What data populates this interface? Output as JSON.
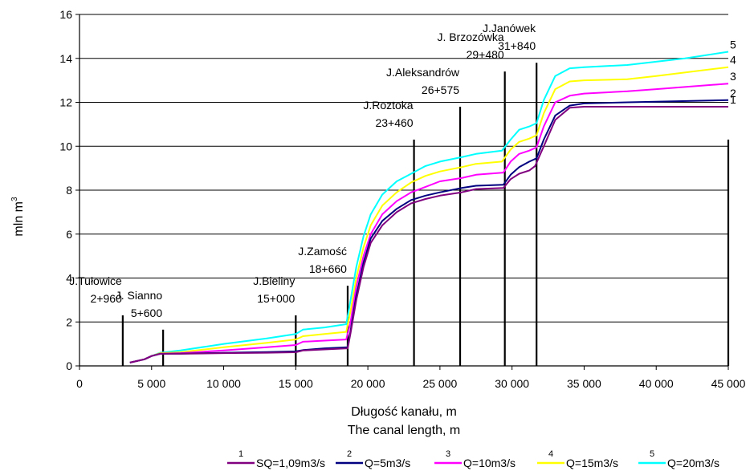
{
  "chart_data": {
    "type": "line",
    "title": "",
    "xlabel": "Długość kanału, m",
    "xlabel2": "The canal length, m",
    "ylabel": "mln m",
    "ylabel_sup": "3",
    "xlim": [
      0,
      45000
    ],
    "ylim": [
      0,
      16
    ],
    "xticks": [
      0,
      5000,
      10000,
      15000,
      20000,
      25000,
      30000,
      35000,
      40000,
      45000
    ],
    "xtick_labels": [
      "0",
      "5 000",
      "10 000",
      "15 000",
      "20 000",
      "25 000",
      "30 000",
      "35 000",
      "40 000",
      "45 000"
    ],
    "yticks": [
      0,
      2,
      4,
      6,
      8,
      10,
      12,
      14,
      16
    ],
    "ytick_labels": [
      "0",
      "2",
      "4",
      "6",
      "8",
      "10",
      "12",
      "14",
      "16"
    ],
    "grid": "horizontal",
    "legend_position": "bottom",
    "series": [
      {
        "num": "1",
        "name": "SQ=1,09m3/s",
        "color": "#800080",
        "points": [
          [
            3500,
            0.15
          ],
          [
            4500,
            0.3
          ],
          [
            5000,
            0.45
          ],
          [
            5600,
            0.55
          ],
          [
            7000,
            0.55
          ],
          [
            10000,
            0.58
          ],
          [
            13000,
            0.6
          ],
          [
            15000,
            0.62
          ],
          [
            15500,
            0.7
          ],
          [
            17000,
            0.75
          ],
          [
            18600,
            0.8
          ],
          [
            18800,
            1.5
          ],
          [
            19200,
            3.0
          ],
          [
            19700,
            4.5
          ],
          [
            20200,
            5.6
          ],
          [
            21000,
            6.4
          ],
          [
            22000,
            7.0
          ],
          [
            23000,
            7.4
          ],
          [
            24000,
            7.6
          ],
          [
            25000,
            7.75
          ],
          [
            26500,
            7.9
          ],
          [
            27500,
            8.05
          ],
          [
            29400,
            8.1
          ],
          [
            29900,
            8.5
          ],
          [
            30500,
            8.75
          ],
          [
            31200,
            8.9
          ],
          [
            31600,
            9.1
          ],
          [
            32200,
            10.0
          ],
          [
            33000,
            11.2
          ],
          [
            34000,
            11.75
          ],
          [
            35000,
            11.8
          ],
          [
            45000,
            11.8
          ]
        ]
      },
      {
        "num": "2",
        "name": "Q=5m3/s",
        "color": "#000080",
        "points": [
          [
            3500,
            0.15
          ],
          [
            4500,
            0.3
          ],
          [
            5000,
            0.45
          ],
          [
            5600,
            0.55
          ],
          [
            7000,
            0.56
          ],
          [
            10000,
            0.6
          ],
          [
            13000,
            0.63
          ],
          [
            15000,
            0.66
          ],
          [
            15500,
            0.72
          ],
          [
            17000,
            0.8
          ],
          [
            18600,
            0.85
          ],
          [
            18800,
            1.6
          ],
          [
            19200,
            3.2
          ],
          [
            19700,
            4.7
          ],
          [
            20200,
            5.8
          ],
          [
            21000,
            6.6
          ],
          [
            22000,
            7.15
          ],
          [
            23000,
            7.55
          ],
          [
            24000,
            7.75
          ],
          [
            25000,
            7.9
          ],
          [
            26500,
            8.1
          ],
          [
            27500,
            8.2
          ],
          [
            29400,
            8.25
          ],
          [
            29900,
            8.7
          ],
          [
            30500,
            9.05
          ],
          [
            31200,
            9.3
          ],
          [
            31700,
            9.45
          ],
          [
            32200,
            10.3
          ],
          [
            33000,
            11.4
          ],
          [
            34000,
            11.85
          ],
          [
            35000,
            11.95
          ],
          [
            38000,
            12.0
          ],
          [
            45000,
            12.1
          ]
        ]
      },
      {
        "num": "3",
        "name": "Q=10m3/s",
        "color": "#ff00ff",
        "points": [
          [
            3500,
            0.15
          ],
          [
            4500,
            0.3
          ],
          [
            5000,
            0.45
          ],
          [
            5600,
            0.55
          ],
          [
            7000,
            0.58
          ],
          [
            10000,
            0.7
          ],
          [
            13000,
            0.85
          ],
          [
            15000,
            0.95
          ],
          [
            15500,
            1.1
          ],
          [
            17000,
            1.15
          ],
          [
            18500,
            1.2
          ],
          [
            18800,
            2.0
          ],
          [
            19200,
            3.6
          ],
          [
            19700,
            5.0
          ],
          [
            20200,
            6.0
          ],
          [
            21000,
            6.9
          ],
          [
            22000,
            7.5
          ],
          [
            23000,
            7.9
          ],
          [
            24000,
            8.15
          ],
          [
            25000,
            8.4
          ],
          [
            26500,
            8.55
          ],
          [
            27500,
            8.7
          ],
          [
            29400,
            8.8
          ],
          [
            29900,
            9.3
          ],
          [
            30500,
            9.65
          ],
          [
            31200,
            9.8
          ],
          [
            31700,
            9.95
          ],
          [
            32200,
            10.9
          ],
          [
            33000,
            12.0
          ],
          [
            34000,
            12.3
          ],
          [
            35000,
            12.4
          ],
          [
            38000,
            12.5
          ],
          [
            40000,
            12.6
          ],
          [
            45000,
            12.85
          ]
        ]
      },
      {
        "num": "4",
        "name": "Q=15m3/s",
        "color": "#ffff00",
        "points": [
          [
            3500,
            0.15
          ],
          [
            4500,
            0.3
          ],
          [
            5000,
            0.45
          ],
          [
            5600,
            0.58
          ],
          [
            7000,
            0.62
          ],
          [
            10000,
            0.85
          ],
          [
            13000,
            1.05
          ],
          [
            15000,
            1.2
          ],
          [
            15500,
            1.35
          ],
          [
            17000,
            1.45
          ],
          [
            18500,
            1.55
          ],
          [
            18800,
            2.5
          ],
          [
            19200,
            4.0
          ],
          [
            19700,
            5.4
          ],
          [
            20200,
            6.4
          ],
          [
            21000,
            7.3
          ],
          [
            22000,
            7.9
          ],
          [
            23000,
            8.35
          ],
          [
            24000,
            8.65
          ],
          [
            25000,
            8.85
          ],
          [
            26500,
            9.05
          ],
          [
            27500,
            9.2
          ],
          [
            29300,
            9.3
          ],
          [
            29900,
            9.85
          ],
          [
            30500,
            10.2
          ],
          [
            31200,
            10.35
          ],
          [
            31700,
            10.5
          ],
          [
            32200,
            11.5
          ],
          [
            33000,
            12.6
          ],
          [
            34000,
            12.95
          ],
          [
            35000,
            13.0
          ],
          [
            38000,
            13.05
          ],
          [
            40000,
            13.2
          ],
          [
            45000,
            13.6
          ]
        ]
      },
      {
        "num": "5",
        "name": "Q=20m3/s",
        "color": "#00ffff",
        "points": [
          [
            3500,
            0.15
          ],
          [
            4500,
            0.3
          ],
          [
            5000,
            0.45
          ],
          [
            5600,
            0.6
          ],
          [
            7000,
            0.7
          ],
          [
            10000,
            1.0
          ],
          [
            13000,
            1.25
          ],
          [
            15000,
            1.45
          ],
          [
            15500,
            1.65
          ],
          [
            17000,
            1.75
          ],
          [
            18500,
            1.9
          ],
          [
            18800,
            3.0
          ],
          [
            19200,
            4.5
          ],
          [
            19700,
            5.9
          ],
          [
            20200,
            6.9
          ],
          [
            21000,
            7.8
          ],
          [
            22000,
            8.4
          ],
          [
            23000,
            8.75
          ],
          [
            24000,
            9.1
          ],
          [
            25000,
            9.3
          ],
          [
            26500,
            9.5
          ],
          [
            27500,
            9.65
          ],
          [
            29300,
            9.8
          ],
          [
            29900,
            10.3
          ],
          [
            30500,
            10.75
          ],
          [
            31200,
            10.9
          ],
          [
            31700,
            11.05
          ],
          [
            32200,
            12.1
          ],
          [
            33000,
            13.2
          ],
          [
            34000,
            13.55
          ],
          [
            35000,
            13.6
          ],
          [
            38000,
            13.7
          ],
          [
            40000,
            13.85
          ],
          [
            42000,
            14.0
          ],
          [
            45000,
            14.3
          ]
        ]
      }
    ],
    "markers": [
      {
        "x": 3000,
        "top": 2.3,
        "line1": "J.Tułowice",
        "line2": "2+960"
      },
      {
        "x": 5800,
        "top": 1.65,
        "line1": "J. Sianno",
        "line2": "5+600"
      },
      {
        "x": 15000,
        "top": 2.3,
        "line1": "J.Bieliny",
        "line2": "15+000"
      },
      {
        "x": 18600,
        "top": 3.65,
        "line1": "J.Zamość",
        "line2": "18+660"
      },
      {
        "x": 23200,
        "top": 10.3,
        "line1": "J.Roztoka",
        "line2": "23+460"
      },
      {
        "x": 26400,
        "top": 11.8,
        "line1": "J.Aleksandrów",
        "line2": "26+575"
      },
      {
        "x": 29500,
        "top": 13.4,
        "line1": "J. Brzozówka",
        "line2": "29+480"
      },
      {
        "x": 31700,
        "top": 13.8,
        "line1": "J.Janówek",
        "line2": "31+840"
      }
    ],
    "end_marker": {
      "x": 45000,
      "top": 10.3
    }
  }
}
